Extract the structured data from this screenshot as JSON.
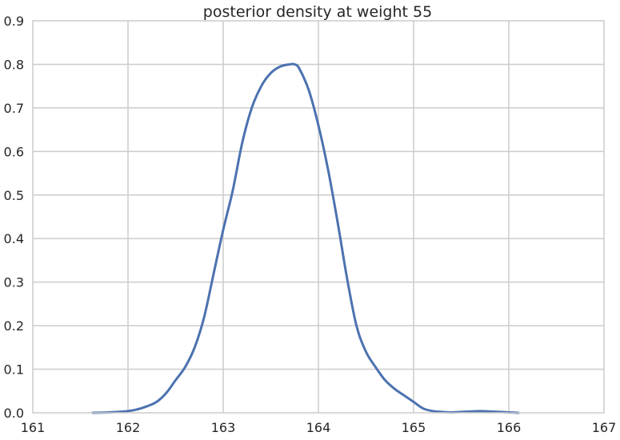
{
  "chart_data": {
    "type": "line",
    "title": "posterior density at weight 55",
    "xlabel": "",
    "ylabel": "",
    "xlim": [
      161,
      167
    ],
    "ylim": [
      0,
      0.9
    ],
    "x_ticks": [
      "161",
      "162",
      "163",
      "164",
      "165",
      "166",
      "167"
    ],
    "y_ticks": [
      "0.0",
      "0.1",
      "0.2",
      "0.3",
      "0.4",
      "0.5",
      "0.6",
      "0.7",
      "0.8",
      "0.9"
    ],
    "grid": true,
    "legend": "none",
    "series": [
      {
        "color": "#4c72b0",
        "x": [
          161.63,
          161.8,
          162.0,
          162.1,
          162.2,
          162.3,
          162.4,
          162.5,
          162.6,
          162.7,
          162.8,
          162.9,
          163.0,
          163.1,
          163.2,
          163.3,
          163.4,
          163.5,
          163.6,
          163.7,
          163.75,
          163.8,
          163.9,
          164.0,
          164.1,
          164.2,
          164.3,
          164.4,
          164.5,
          164.6,
          164.7,
          164.8,
          164.9,
          165.0,
          165.1,
          165.2,
          165.3,
          165.4,
          165.5,
          165.6,
          165.7,
          165.8,
          165.9,
          166.0,
          166.1
        ],
        "y": [
          0.0,
          0.001,
          0.004,
          0.008,
          0.015,
          0.025,
          0.045,
          0.075,
          0.105,
          0.15,
          0.22,
          0.32,
          0.42,
          0.51,
          0.62,
          0.7,
          0.75,
          0.78,
          0.795,
          0.8,
          0.8,
          0.79,
          0.74,
          0.66,
          0.56,
          0.44,
          0.31,
          0.2,
          0.14,
          0.105,
          0.075,
          0.055,
          0.04,
          0.025,
          0.01,
          0.004,
          0.002,
          0.001,
          0.002,
          0.003,
          0.004,
          0.003,
          0.002,
          0.001,
          0.0
        ]
      }
    ]
  }
}
